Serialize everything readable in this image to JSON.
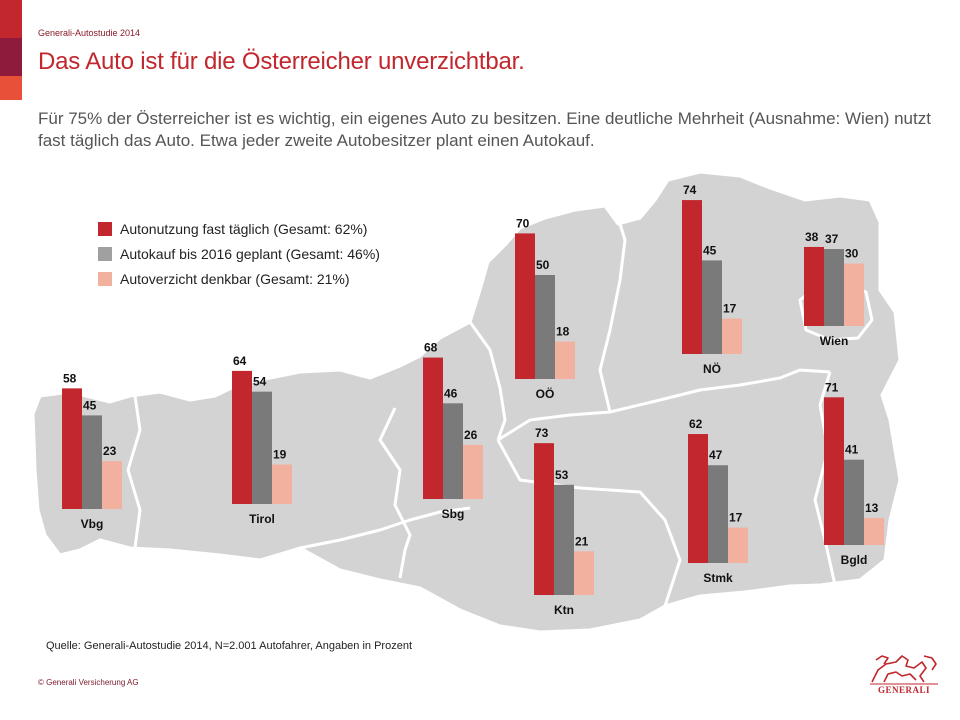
{
  "header": {
    "study_label": "Generali-Autostudie 2014",
    "title": "Das Auto ist für die Österreicher unverzichtbar.",
    "subtitle": "Für 75% der Österreicher ist es wichtig, ein eigenes Auto zu besitzen. Eine deutliche Mehrheit (Ausnahme: Wien) nutzt fast täglich das Auto. Etwa jeder zweite Autobesitzer plant einen Autokauf."
  },
  "colors": {
    "series_1": "#c1272d",
    "series_2": "#7a7a7a",
    "series_3": "#f2b09f",
    "map_fill": "#d3d3d3",
    "map_border": "#ffffff",
    "accent": "#c1272d"
  },
  "footer": {
    "source": "Quelle: Generali-Autostudie 2014, N=2.001 Autofahrer, Angaben in Prozent",
    "copyright": "© Generali Versicherung AG",
    "logo_text": "GENERALI"
  },
  "chart_data": {
    "type": "bar",
    "title": "",
    "xlabel": "",
    "ylabel": "",
    "ylim": [
      0,
      100
    ],
    "legend_position": "top-left",
    "grid": false,
    "categories": [
      "Vbg",
      "Tirol",
      "Sbg",
      "OÖ",
      "Ktn",
      "NÖ",
      "Stmk",
      "Wien",
      "Bgld"
    ],
    "series": [
      {
        "name": "Autonutzung fast täglich (Gesamt: 62%)",
        "values": [
          58,
          64,
          68,
          70,
          73,
          74,
          62,
          38,
          71
        ]
      },
      {
        "name": "Autokauf bis 2016 geplant (Gesamt: 46%)",
        "values": [
          45,
          54,
          46,
          50,
          53,
          45,
          47,
          37,
          41
        ]
      },
      {
        "name": "Autoverzicht denkbar (Gesamt: 21%)",
        "values": [
          23,
          19,
          26,
          18,
          21,
          17,
          17,
          30,
          13
        ]
      }
    ]
  }
}
